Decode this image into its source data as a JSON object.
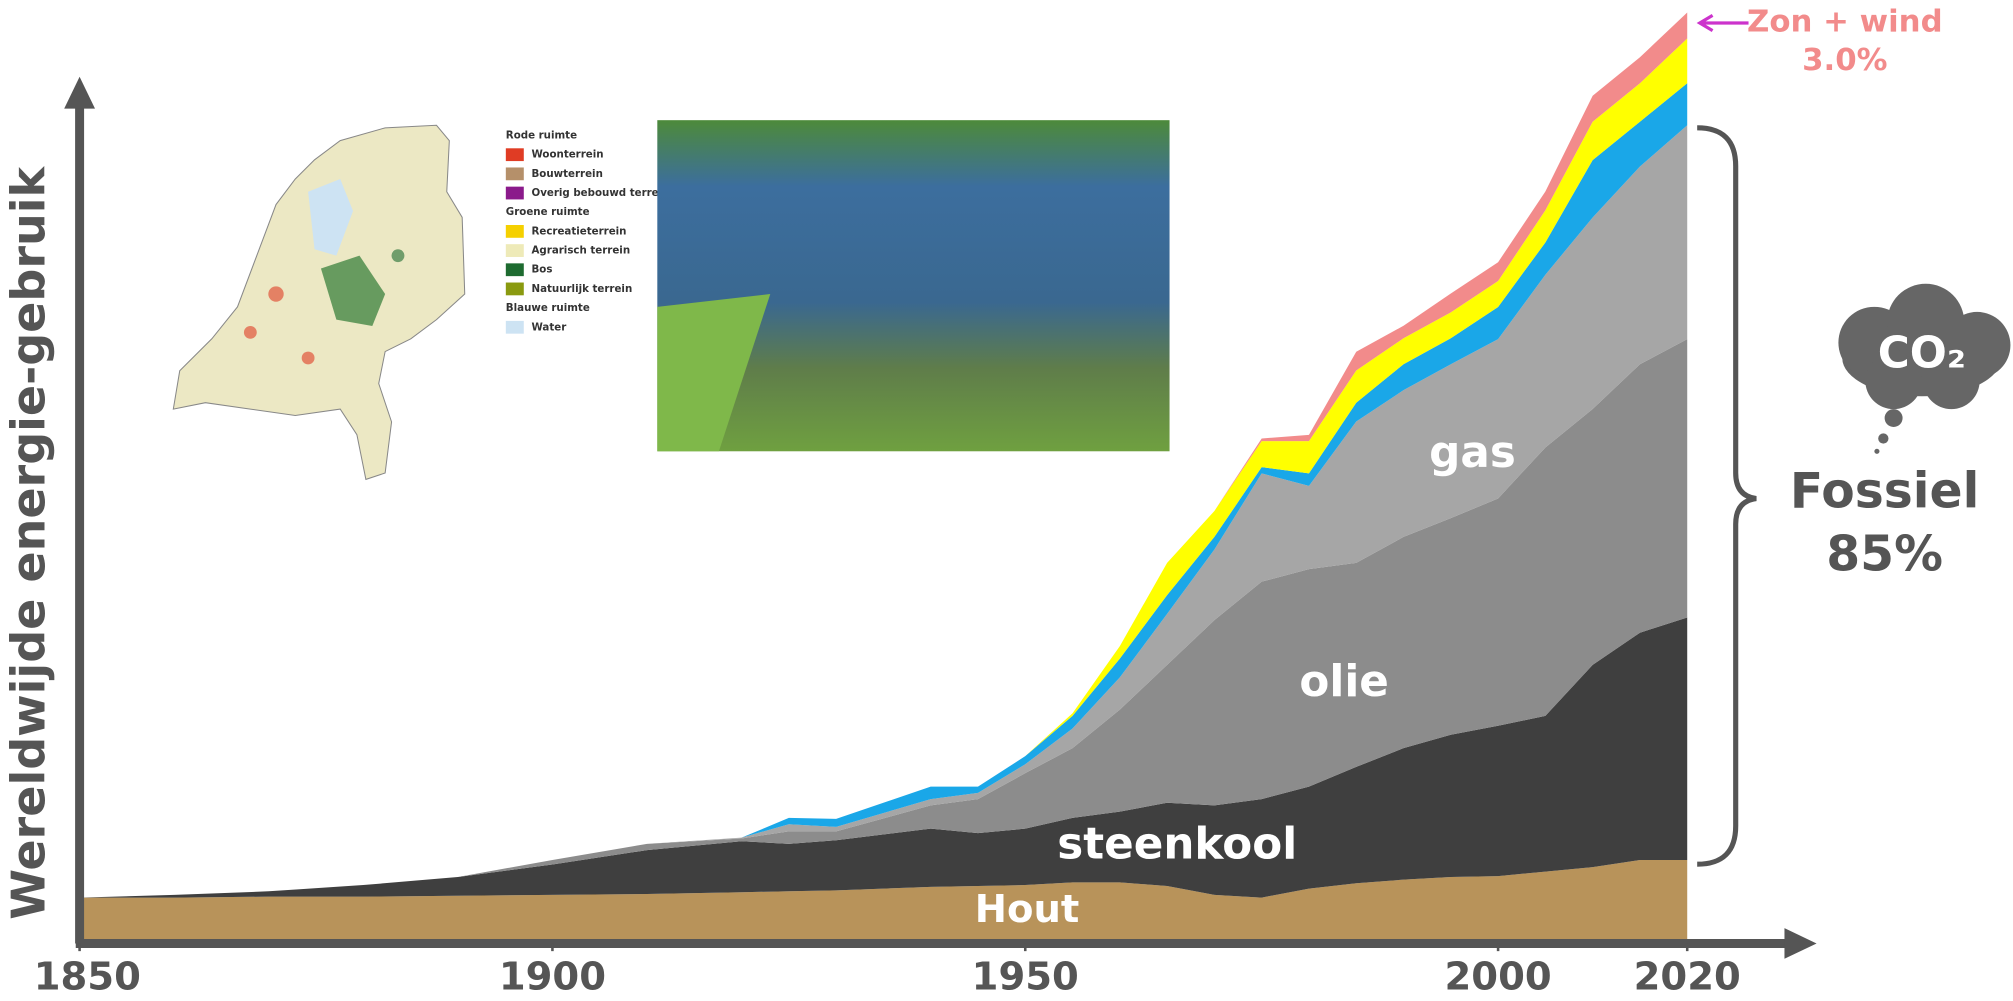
{
  "chart_data": {
    "type": "stacked_area",
    "y_label": "Wereldwijde energie-gebruik",
    "x": [
      1850,
      1860,
      1870,
      1880,
      1890,
      1900,
      1910,
      1920,
      1925,
      1930,
      1940,
      1945,
      1950,
      1955,
      1960,
      1965,
      1970,
      1975,
      1980,
      1985,
      1990,
      1995,
      2000,
      2005,
      2010,
      2015,
      2020
    ],
    "xlim": [
      1850,
      2033
    ],
    "xticks": [
      1850,
      1900,
      1950,
      2000,
      2020
    ],
    "ylim": [
      0,
      105
    ],
    "series": [
      {
        "name": "Hout",
        "color": "#b8935a",
        "values": [
          4.7,
          4.7,
          4.8,
          4.8,
          4.9,
          5.0,
          5.1,
          5.3,
          5.4,
          5.5,
          5.9,
          6.0,
          6.1,
          6.4,
          6.4,
          6.0,
          5.0,
          4.7,
          5.7,
          6.3,
          6.7,
          7.0,
          7.1,
          7.6,
          8.1,
          8.9,
          8.9
        ]
      },
      {
        "name": "steenkool",
        "color": "#3f3f3f",
        "values": [
          0,
          0.3,
          0.6,
          1.3,
          2.1,
          3.4,
          4.9,
          5.7,
          5.3,
          5.6,
          6.5,
          5.9,
          6.3,
          7.2,
          7.9,
          9.3,
          10.0,
          11.0,
          11.4,
          13.0,
          14.7,
          15.9,
          16.8,
          17.4,
          22.6,
          25.4,
          27.1
        ]
      },
      {
        "name": "olie",
        "color": "#8c8c8c",
        "values": [
          0,
          0,
          0,
          0,
          0,
          0.5,
          0.7,
          0.3,
          1.4,
          1.0,
          2.6,
          3.8,
          6.2,
          7.8,
          11.4,
          15.4,
          20.7,
          24.3,
          24.3,
          22.8,
          23.6,
          24.2,
          25.4,
          30.0,
          28.6,
          30.0,
          31.1
        ]
      },
      {
        "name": "gas",
        "color": "#a6a6a6",
        "values": [
          0,
          0,
          0,
          0,
          0,
          0,
          0,
          0.1,
          0.8,
          0.5,
          0.7,
          0.7,
          1.0,
          2.2,
          3.6,
          5.7,
          7.9,
          12.1,
          9.3,
          15.8,
          16.4,
          17.2,
          17.8,
          19.3,
          21.4,
          22.1,
          23.9
        ]
      },
      {
        "color": "#1aa7e8",
        "values": [
          0,
          0,
          0,
          0,
          0,
          0,
          0,
          0,
          0.7,
          0.9,
          1.4,
          0.7,
          0.9,
          1.4,
          2.1,
          2.1,
          1.4,
          0.7,
          1.4,
          2.1,
          2.9,
          2.9,
          3.6,
          3.6,
          6.4,
          5.0,
          4.7
        ]
      },
      {
        "color": "#ffff00",
        "values": [
          0,
          0,
          0,
          0,
          0,
          0,
          0,
          0,
          0,
          0,
          0,
          0,
          0,
          0.3,
          1.4,
          3.6,
          2.9,
          2.9,
          3.6,
          3.6,
          2.9,
          2.9,
          2.9,
          3.6,
          4.3,
          4.3,
          5.0
        ]
      },
      {
        "name": "Zon + wind",
        "color": "#f28b8b",
        "values": [
          0,
          0,
          0,
          0,
          0,
          0,
          0,
          0,
          0,
          0,
          0,
          0,
          0,
          0,
          0,
          0,
          0,
          0.3,
          0.7,
          2.1,
          1.4,
          2.1,
          2.1,
          2.1,
          2.9,
          2.9,
          2.9
        ]
      }
    ],
    "annotations": [
      "3.0%",
      "Fossiel",
      "85%",
      "CO₂"
    ]
  },
  "map_legend": {
    "groups": [
      {
        "title": "Rode ruimte",
        "items": [
          {
            "label": "Woonterrein",
            "color": "#e03c24"
          },
          {
            "label": "Bouwterrein",
            "color": "#b5906a"
          },
          {
            "label": "Overig bebouwd terrein",
            "color": "#8b1a8b"
          }
        ]
      },
      {
        "title": "Groene ruimte",
        "items": [
          {
            "label": "Recreatieterrein",
            "color": "#f5d000"
          },
          {
            "label": "Agrarisch terrein",
            "color": "#eeeab8"
          },
          {
            "label": "Bos",
            "color": "#1e6b30"
          },
          {
            "label": "Natuurlijk terrein",
            "color": "#8a9a10"
          }
        ]
      },
      {
        "title": "Blauwe ruimte",
        "items": [
          {
            "label": "Water",
            "color": "#cde3f3"
          }
        ]
      }
    ]
  }
}
